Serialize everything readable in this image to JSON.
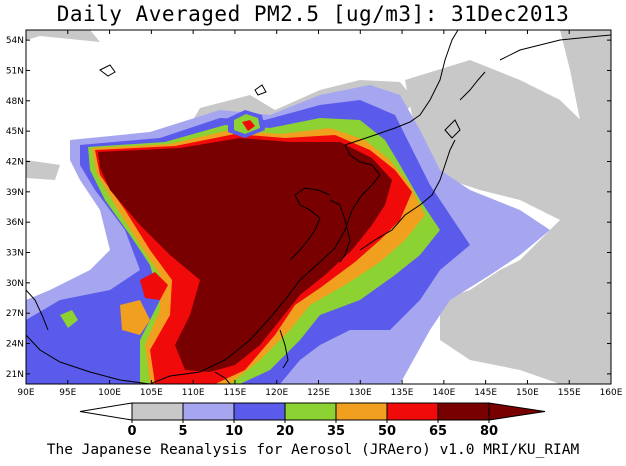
{
  "title": "Daily Averaged PM2.5 [ug/m3]: 31Dec2013",
  "footer": "The Japanese Reanalysis for Aerosol (JRAero) v1.0 MRI/KU_RIAM",
  "map": {
    "lon_range": [
      90,
      160
    ],
    "lat_range": [
      20,
      55
    ],
    "lon_ticks": [
      "90E",
      "95E",
      "100E",
      "105E",
      "110E",
      "115E",
      "120E",
      "125E",
      "130E",
      "135E",
      "140E",
      "145E",
      "150E",
      "155E",
      "160E"
    ],
    "lat_ticks": [
      "21N",
      "24N",
      "27N",
      "30N",
      "33N",
      "36N",
      "39N",
      "42N",
      "45N",
      "48N",
      "51N",
      "54N"
    ]
  },
  "colorbar": {
    "levels": [
      "0",
      "5",
      "10",
      "20",
      "35",
      "50",
      "65",
      "80"
    ],
    "colors": [
      "#ffffff",
      "#c8c8c8",
      "#a5a5f0",
      "#5a5aeb",
      "#8cd232",
      "#f0a01e",
      "#f00a0a",
      "#780000"
    ]
  }
}
